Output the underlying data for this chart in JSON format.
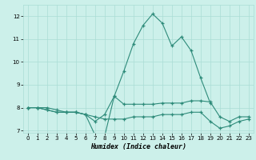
{
  "xlabel": "Humidex (Indice chaleur)",
  "x_values": [
    0,
    1,
    2,
    3,
    4,
    5,
    6,
    7,
    8,
    9,
    10,
    11,
    12,
    13,
    14,
    15,
    16,
    17,
    18,
    19,
    20,
    21,
    22,
    23
  ],
  "series1": [
    8.0,
    8.0,
    8.0,
    7.9,
    7.8,
    7.8,
    7.7,
    6.8,
    6.75,
    8.5,
    9.6,
    10.8,
    11.6,
    12.1,
    11.7,
    10.7,
    11.1,
    10.5,
    9.3,
    8.2,
    null,
    null,
    null,
    null
  ],
  "series2": [
    8.0,
    8.0,
    7.9,
    7.8,
    7.8,
    7.8,
    7.7,
    7.6,
    7.5,
    7.5,
    7.5,
    7.6,
    7.6,
    7.6,
    7.7,
    7.7,
    7.7,
    7.8,
    7.8,
    7.4,
    7.1,
    7.2,
    7.4,
    7.5
  ],
  "series3": [
    8.0,
    8.0,
    7.9,
    7.8,
    7.8,
    7.8,
    7.7,
    7.4,
    7.7,
    8.5,
    8.15,
    8.15,
    8.15,
    8.15,
    8.2,
    8.2,
    8.2,
    8.3,
    8.3,
    8.25,
    7.6,
    7.4,
    7.6,
    7.6
  ],
  "line_color": "#2E8B7A",
  "background_color": "#CCF0EA",
  "grid_color": "#AADDD5",
  "ylim": [
    6.9,
    12.5
  ],
  "xlim": [
    -0.5,
    23.5
  ],
  "yticks": [
    7,
    8,
    9,
    10,
    11,
    12
  ],
  "xticks": [
    0,
    1,
    2,
    3,
    4,
    5,
    6,
    7,
    8,
    9,
    10,
    11,
    12,
    13,
    14,
    15,
    16,
    17,
    18,
    19,
    20,
    21,
    22,
    23
  ]
}
